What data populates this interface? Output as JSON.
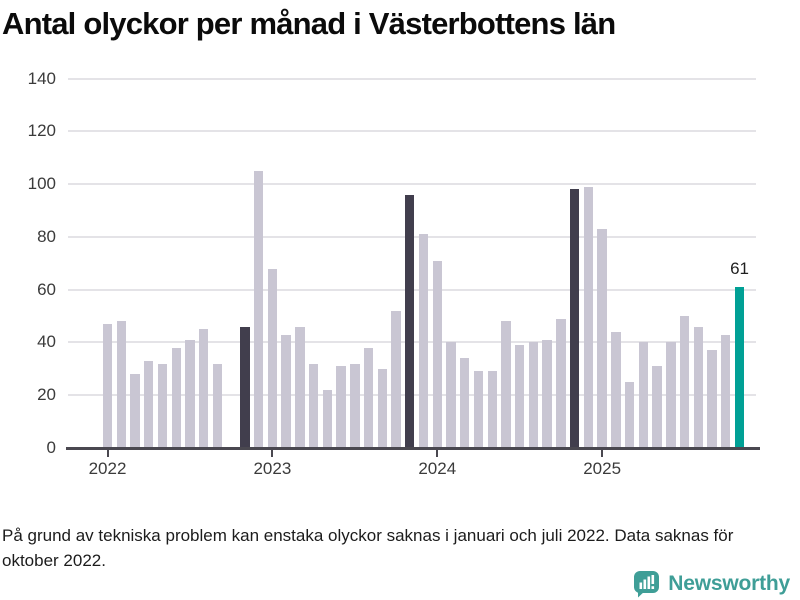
{
  "title": "Antal olyckor per månad i Västerbottens län",
  "footnote": {
    "line1": "På grund av tekniska problem kan enstaka olyckor saknas i januari och juli 2022. Data saknas för",
    "line2": "oktober 2022."
  },
  "logo": {
    "brand": "Newsworthy"
  },
  "colors": {
    "bar_default": "#c9c6d3",
    "bar_highlight_dark": "#413e4d",
    "bar_highlight_teal": "#00a095",
    "gridline": "#e4e3e7",
    "axis": "#4a4850",
    "label_text": "#3b3b3b",
    "logo_teal": "#3f9e97"
  },
  "chart_data": {
    "type": "bar",
    "title": "Antal olyckor per månad i Västerbottens län",
    "ylim": [
      0,
      140
    ],
    "yticks": [
      0,
      20,
      40,
      60,
      80,
      100,
      120,
      140
    ],
    "grid": "horizontal",
    "year_ticks": [
      "2022",
      "2023",
      "2024",
      "2025"
    ],
    "annotation": {
      "month": "2025-11",
      "label": "61"
    },
    "note": "null value = missing data (oktober 2022)",
    "months": [
      {
        "m": "2022-01",
        "v": 47,
        "hl": "default"
      },
      {
        "m": "2022-02",
        "v": 48,
        "hl": "default"
      },
      {
        "m": "2022-03",
        "v": 28,
        "hl": "default"
      },
      {
        "m": "2022-04",
        "v": 33,
        "hl": "default"
      },
      {
        "m": "2022-05",
        "v": 32,
        "hl": "default"
      },
      {
        "m": "2022-06",
        "v": 38,
        "hl": "default"
      },
      {
        "m": "2022-07",
        "v": 41,
        "hl": "default"
      },
      {
        "m": "2022-08",
        "v": 45,
        "hl": "default"
      },
      {
        "m": "2022-09",
        "v": 32,
        "hl": "default"
      },
      {
        "m": "2022-10",
        "v": null,
        "hl": "default"
      },
      {
        "m": "2022-11",
        "v": 46,
        "hl": "dark"
      },
      {
        "m": "2022-12",
        "v": 105,
        "hl": "default"
      },
      {
        "m": "2023-01",
        "v": 68,
        "hl": "default"
      },
      {
        "m": "2023-02",
        "v": 43,
        "hl": "default"
      },
      {
        "m": "2023-03",
        "v": 46,
        "hl": "default"
      },
      {
        "m": "2023-04",
        "v": 32,
        "hl": "default"
      },
      {
        "m": "2023-05",
        "v": 22,
        "hl": "default"
      },
      {
        "m": "2023-06",
        "v": 31,
        "hl": "default"
      },
      {
        "m": "2023-07",
        "v": 32,
        "hl": "default"
      },
      {
        "m": "2023-08",
        "v": 38,
        "hl": "default"
      },
      {
        "m": "2023-09",
        "v": 30,
        "hl": "default"
      },
      {
        "m": "2023-10",
        "v": 52,
        "hl": "default"
      },
      {
        "m": "2023-11",
        "v": 96,
        "hl": "dark"
      },
      {
        "m": "2023-12",
        "v": 81,
        "hl": "default"
      },
      {
        "m": "2024-01",
        "v": 71,
        "hl": "default"
      },
      {
        "m": "2024-02",
        "v": 40,
        "hl": "default"
      },
      {
        "m": "2024-03",
        "v": 34,
        "hl": "default"
      },
      {
        "m": "2024-04",
        "v": 29,
        "hl": "default"
      },
      {
        "m": "2024-05",
        "v": 29,
        "hl": "default"
      },
      {
        "m": "2024-06",
        "v": 48,
        "hl": "default"
      },
      {
        "m": "2024-07",
        "v": 39,
        "hl": "default"
      },
      {
        "m": "2024-08",
        "v": 40,
        "hl": "default"
      },
      {
        "m": "2024-09",
        "v": 41,
        "hl": "default"
      },
      {
        "m": "2024-10",
        "v": 49,
        "hl": "default"
      },
      {
        "m": "2024-11",
        "v": 98,
        "hl": "dark"
      },
      {
        "m": "2024-12",
        "v": 99,
        "hl": "default"
      },
      {
        "m": "2025-01",
        "v": 83,
        "hl": "default"
      },
      {
        "m": "2025-02",
        "v": 44,
        "hl": "default"
      },
      {
        "m": "2025-03",
        "v": 25,
        "hl": "default"
      },
      {
        "m": "2025-04",
        "v": 40,
        "hl": "default"
      },
      {
        "m": "2025-05",
        "v": 31,
        "hl": "default"
      },
      {
        "m": "2025-06",
        "v": 40,
        "hl": "default"
      },
      {
        "m": "2025-07",
        "v": 50,
        "hl": "default"
      },
      {
        "m": "2025-08",
        "v": 46,
        "hl": "default"
      },
      {
        "m": "2025-09",
        "v": 37,
        "hl": "default"
      },
      {
        "m": "2025-10",
        "v": 43,
        "hl": "default"
      },
      {
        "m": "2025-11",
        "v": 61,
        "hl": "teal"
      }
    ]
  }
}
